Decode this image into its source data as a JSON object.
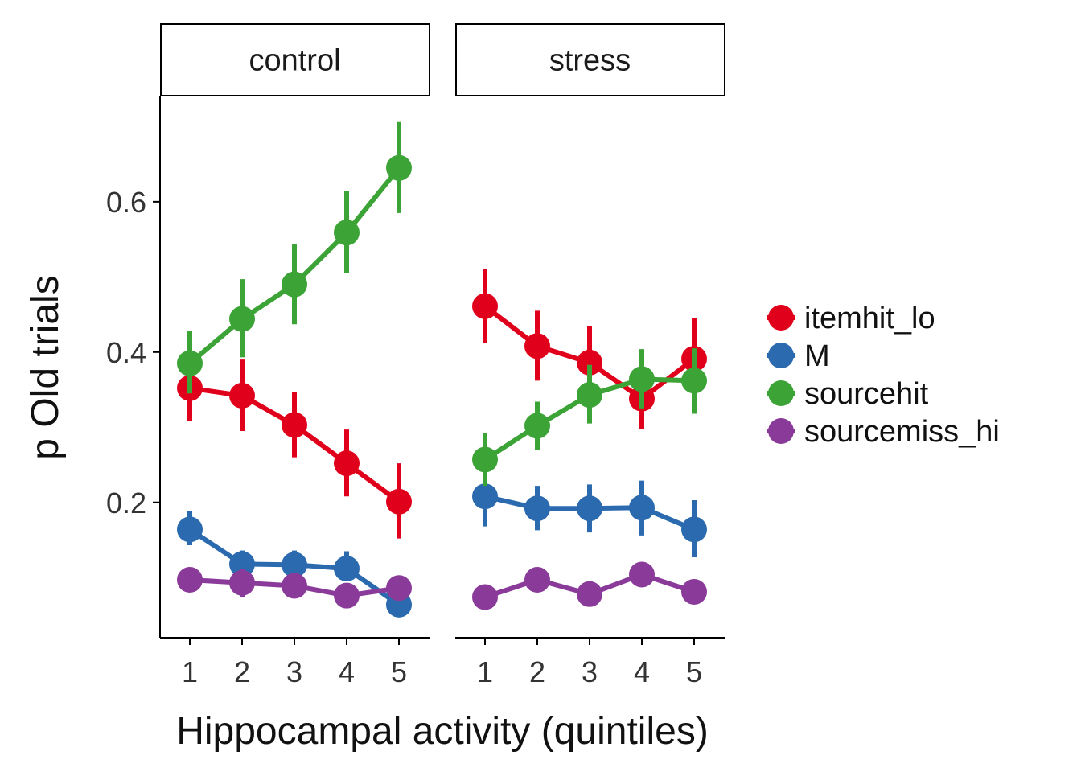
{
  "chart_data": {
    "type": "line",
    "xlabel": "Hippocampal activity (quintiles)",
    "ylabel": "p Old trials",
    "x": [
      1,
      2,
      3,
      4,
      5
    ],
    "ylim": [
      0.02,
      0.74
    ],
    "yticks": [
      0.2,
      0.4,
      0.6
    ],
    "ytick_labels": [
      "0.2",
      "0.4",
      "0.6"
    ],
    "grid": false,
    "legend_position": "right",
    "panels": [
      {
        "label": "control",
        "series": [
          {
            "name": "itemhit_lo",
            "color": "#e0001b",
            "values": [
              0.352,
              0.342,
              0.303,
              0.252,
              0.201
            ],
            "err_low": [
              0.308,
              0.295,
              0.26,
              0.208,
              0.152
            ],
            "err_high": [
              0.395,
              0.39,
              0.347,
              0.297,
              0.252
            ]
          },
          {
            "name": "M",
            "color": "#2b6aaf",
            "values": [
              0.164,
              0.118,
              0.117,
              0.112,
              0.064
            ],
            "err_low": [
              0.143,
              0.1,
              0.1,
              0.095,
              0.05
            ],
            "err_high": [
              0.188,
              0.136,
              0.136,
              0.135,
              0.078
            ]
          },
          {
            "name": "sourcehit",
            "color": "#3ca336",
            "values": [
              0.385,
              0.444,
              0.49,
              0.559,
              0.645
            ],
            "err_low": [
              0.345,
              0.393,
              0.437,
              0.505,
              0.585
            ],
            "err_high": [
              0.428,
              0.497,
              0.544,
              0.614,
              0.706
            ]
          },
          {
            "name": "sourcemiss_hi",
            "color": "#8a3b99",
            "values": [
              0.097,
              0.093,
              0.089,
              0.076,
              0.086
            ],
            "err_low": [
              0.084,
              0.074,
              0.076,
              0.062,
              0.07
            ],
            "err_high": [
              0.11,
              0.112,
              0.102,
              0.09,
              0.102
            ]
          }
        ]
      },
      {
        "label": "stress",
        "series": [
          {
            "name": "itemhit_lo",
            "color": "#e0001b",
            "values": [
              0.461,
              0.408,
              0.386,
              0.338,
              0.391
            ],
            "err_low": [
              0.412,
              0.362,
              0.34,
              0.298,
              0.34
            ],
            "err_high": [
              0.51,
              0.455,
              0.434,
              0.378,
              0.445
            ]
          },
          {
            "name": "M",
            "color": "#2b6aaf",
            "values": [
              0.208,
              0.192,
              0.192,
              0.193,
              0.164
            ],
            "err_low": [
              0.168,
              0.163,
              0.16,
              0.156,
              0.127
            ],
            "err_high": [
              0.245,
              0.222,
              0.224,
              0.229,
              0.203
            ]
          },
          {
            "name": "sourcehit",
            "color": "#3ca336",
            "values": [
              0.257,
              0.302,
              0.343,
              0.364,
              0.362
            ],
            "err_low": [
              0.222,
              0.27,
              0.305,
              0.325,
              0.318
            ],
            "err_high": [
              0.292,
              0.334,
              0.383,
              0.404,
              0.405
            ]
          },
          {
            "name": "sourcemiss_hi",
            "color": "#8a3b99",
            "values": [
              0.074,
              0.097,
              0.078,
              0.104,
              0.081
            ],
            "err_low": [
              0.066,
              0.088,
              0.07,
              0.094,
              0.073
            ],
            "err_high": [
              0.082,
              0.106,
              0.086,
              0.114,
              0.089
            ]
          }
        ]
      }
    ]
  }
}
